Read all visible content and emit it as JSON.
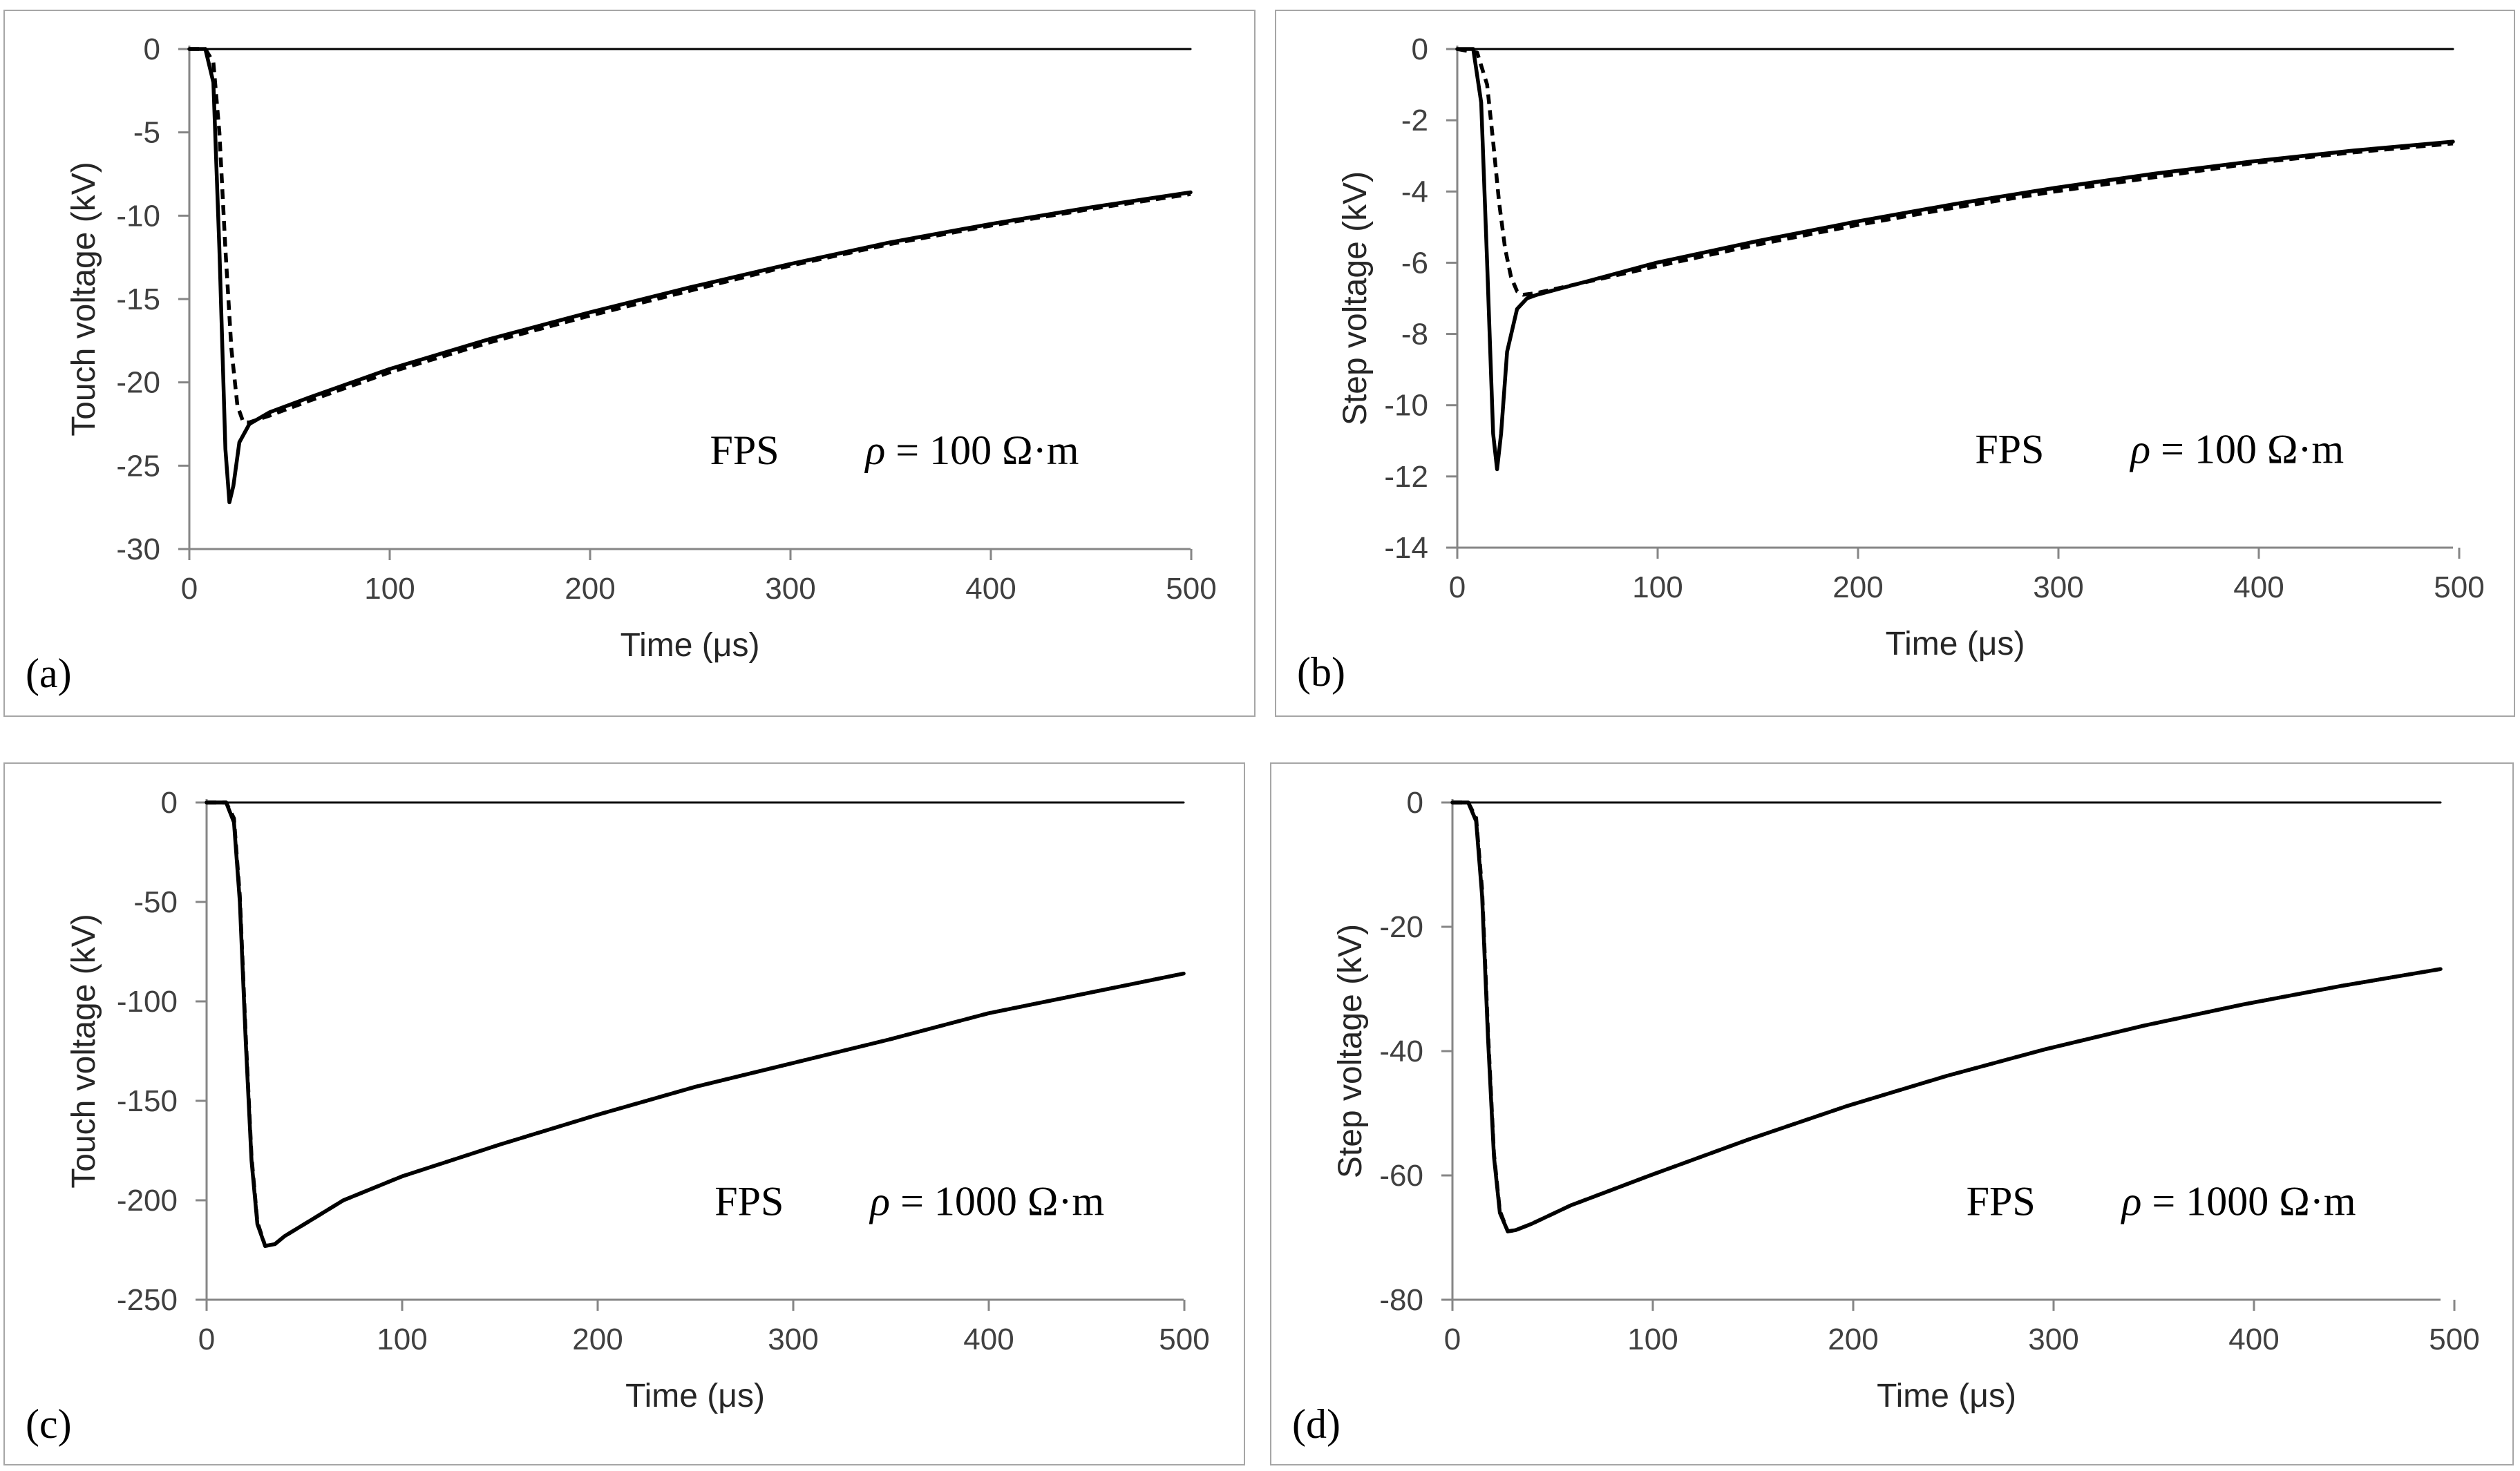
{
  "chart_data": [
    {
      "type": "line",
      "panel_label": "(a)",
      "ylabel": "Touch voltage (kV)",
      "xlabel": "Time (μs)",
      "annotation": {
        "system": "FPS",
        "rho_symbol": "ρ",
        "rho_text": " = 100 Ω·m"
      },
      "xlim": [
        0,
        500
      ],
      "ylim": [
        -30,
        0
      ],
      "xticks": [
        "0",
        "100",
        "200",
        "300",
        "400",
        "500"
      ],
      "yticks": [
        "0",
        "-5",
        "-10",
        "-15",
        "-20",
        "-25",
        "-30"
      ],
      "series": [
        {
          "name": "zero",
          "style": "solid",
          "x": [
            0,
            500
          ],
          "y": [
            0,
            0
          ]
        },
        {
          "name": "solid",
          "style": "solid",
          "x": [
            0,
            8,
            12,
            15,
            18,
            20,
            22,
            25,
            30,
            40,
            60,
            100,
            150,
            200,
            250,
            300,
            350,
            400,
            450,
            500
          ],
          "y": [
            0,
            0,
            -2,
            -12,
            -24,
            -27.2,
            -26.2,
            -23.6,
            -22.5,
            -21.8,
            -20.9,
            -19.2,
            -17.4,
            -15.8,
            -14.3,
            -12.9,
            -11.6,
            -10.5,
            -9.5,
            -8.6
          ]
        },
        {
          "name": "dashed",
          "style": "dashed",
          "x": [
            0,
            8,
            12,
            15,
            18,
            21,
            24,
            27,
            30,
            40,
            60,
            100,
            150,
            200,
            250,
            300,
            350,
            400,
            450,
            500
          ],
          "y": [
            0,
            0,
            -0.8,
            -5,
            -12,
            -18,
            -21.4,
            -22.4,
            -22.4,
            -22,
            -21.1,
            -19.4,
            -17.6,
            -16,
            -14.5,
            -13,
            -11.7,
            -10.6,
            -9.6,
            -8.7
          ]
        }
      ]
    },
    {
      "type": "line",
      "panel_label": "(b)",
      "ylabel": "Step voltage (kV)",
      "xlabel": "Time (μs)",
      "annotation": {
        "system": "FPS",
        "rho_symbol": "ρ",
        "rho_text": " = 100 Ω·m"
      },
      "xlim": [
        0,
        500
      ],
      "ylim": [
        -14,
        0
      ],
      "xticks": [
        "0",
        "100",
        "200",
        "300",
        "400",
        "500"
      ],
      "yticks": [
        "0",
        "-2",
        "-4",
        "-6",
        "-8",
        "-10",
        "-12",
        "-14"
      ],
      "series": [
        {
          "name": "zero",
          "style": "solid",
          "x": [
            0,
            500
          ],
          "y": [
            0,
            0
          ]
        },
        {
          "name": "solid",
          "style": "solid",
          "x": [
            0,
            8,
            12,
            15,
            18,
            20,
            22,
            25,
            30,
            35,
            40,
            60,
            100,
            150,
            200,
            250,
            300,
            350,
            400,
            450,
            500
          ],
          "y": [
            0,
            0,
            -1.5,
            -6,
            -10.8,
            -11.8,
            -10.8,
            -8.5,
            -7.3,
            -7,
            -6.9,
            -6.6,
            -6,
            -5.4,
            -4.85,
            -4.35,
            -3.9,
            -3.5,
            -3.15,
            -2.85,
            -2.6
          ]
        },
        {
          "name": "dashed",
          "style": "dashed",
          "x": [
            0,
            10,
            15,
            18,
            21,
            24,
            27,
            30,
            33,
            40,
            60,
            100,
            150,
            200,
            250,
            300,
            350,
            400,
            450,
            500
          ],
          "y": [
            0,
            -0.1,
            -1,
            -2.6,
            -4.3,
            -5.6,
            -6.4,
            -6.8,
            -6.9,
            -6.85,
            -6.6,
            -6.1,
            -5.5,
            -4.95,
            -4.45,
            -4,
            -3.6,
            -3.2,
            -2.9,
            -2.65
          ]
        }
      ]
    },
    {
      "type": "line",
      "panel_label": "(c)",
      "ylabel": "Touch voltage (kV)",
      "xlabel": "Time (μs)",
      "annotation": {
        "system": "FPS",
        "rho_symbol": "ρ",
        "rho_text": " = 1000 Ω·m"
      },
      "xlim": [
        0,
        500
      ],
      "ylim": [
        -250,
        0
      ],
      "xticks": [
        "0",
        "100",
        "200",
        "300",
        "400",
        "500"
      ],
      "yticks": [
        "0",
        "-50",
        "-100",
        "-150",
        "-200",
        "-250"
      ],
      "series": [
        {
          "name": "zero",
          "style": "solid",
          "x": [
            0,
            500
          ],
          "y": [
            0,
            0
          ]
        },
        {
          "name": "solid",
          "style": "solid",
          "x": [
            0,
            10,
            14,
            17,
            20,
            23,
            26,
            30,
            35,
            40,
            50,
            70,
            100,
            150,
            200,
            250,
            300,
            350,
            400,
            450,
            500
          ],
          "y": [
            0,
            0,
            -10,
            -50,
            -120,
            -180,
            -212,
            -223,
            -222,
            -218,
            -212,
            -200,
            -188,
            -172,
            -157,
            -143,
            -131,
            -119,
            -106,
            -96,
            -86
          ]
        },
        {
          "name": "dashed",
          "style": "dashed",
          "x": [
            0,
            10,
            14,
            17,
            20,
            23,
            26,
            30,
            35,
            40,
            50,
            70,
            100,
            150,
            200,
            250,
            300,
            350,
            400,
            450,
            500
          ],
          "y": [
            0,
            0,
            -8,
            -47,
            -117,
            -178,
            -211,
            -223,
            -222,
            -218,
            -212,
            -200,
            -188,
            -172,
            -157,
            -143,
            -131,
            -119,
            -106,
            -96,
            -86
          ]
        }
      ]
    },
    {
      "type": "line",
      "panel_label": "(d)",
      "ylabel": "Step voltage (kV)",
      "xlabel": "Time (μs)",
      "annotation": {
        "system": "FPS",
        "rho_symbol": "ρ",
        "rho_text": " = 1000 Ω·m"
      },
      "xlim": [
        0,
        500
      ],
      "ylim": [
        -80,
        0
      ],
      "xticks": [
        "0",
        "100",
        "200",
        "300",
        "400",
        "500"
      ],
      "yticks": [
        "0",
        "-20",
        "-40",
        "-60",
        "-80"
      ],
      "series": [
        {
          "name": "zero",
          "style": "solid",
          "x": [
            0,
            500
          ],
          "y": [
            0,
            0
          ]
        },
        {
          "name": "solid",
          "style": "solid",
          "x": [
            0,
            8,
            12,
            15,
            18,
            21,
            24,
            28,
            32,
            40,
            60,
            100,
            150,
            200,
            250,
            300,
            350,
            400,
            450,
            500
          ],
          "y": [
            0,
            0,
            -3,
            -15,
            -38,
            -57,
            -66,
            -69,
            -68.8,
            -67.8,
            -64.8,
            -60,
            -54.2,
            -48.8,
            -44,
            -39.7,
            -35.9,
            -32.5,
            -29.5,
            -26.8
          ]
        },
        {
          "name": "dashed",
          "style": "dashed",
          "x": [
            0,
            8,
            12,
            15,
            18,
            21,
            24,
            28,
            32,
            40,
            60,
            100,
            150,
            200,
            250,
            300,
            350,
            400,
            450,
            500
          ],
          "y": [
            0,
            0,
            -2.5,
            -14,
            -37,
            -56.5,
            -65.7,
            -69,
            -68.8,
            -67.8,
            -64.8,
            -60,
            -54.2,
            -48.8,
            -44,
            -39.7,
            -35.9,
            -32.5,
            -29.5,
            -26.8
          ]
        }
      ]
    }
  ]
}
